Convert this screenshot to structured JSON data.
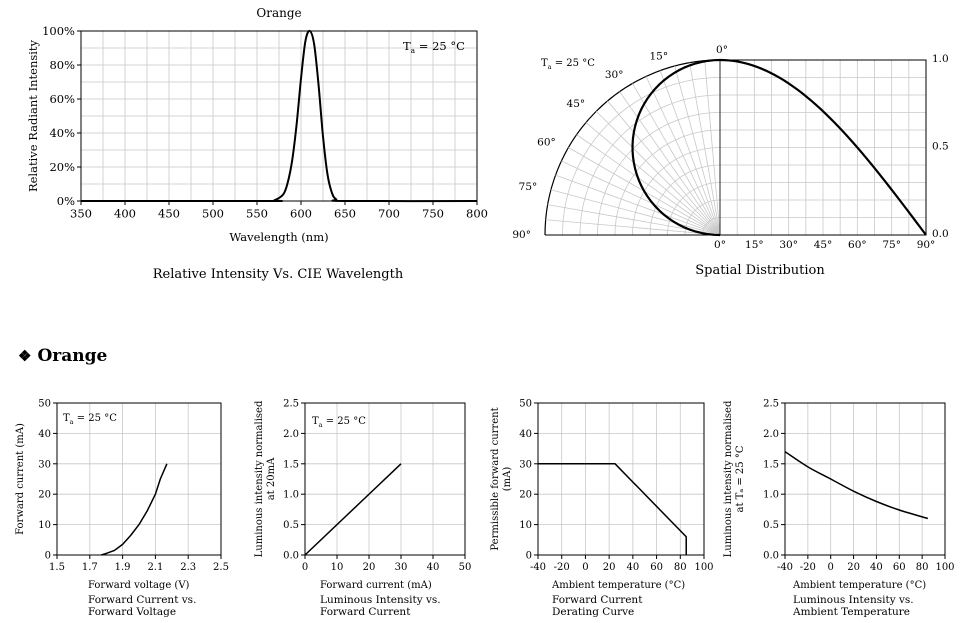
{
  "section_heading": {
    "symbol": "❖",
    "label": "Orange"
  },
  "chart_data": [
    {
      "id": "spectrum",
      "type": "line",
      "title": "Orange",
      "caption": "Relative Intensity Vs. CIE Wavelength",
      "xlabel": "Wavelength (nm)",
      "ylabel": "Relative Radiant Intensity",
      "xlim": [
        350,
        800
      ],
      "ylim": [
        0,
        100
      ],
      "xticks": [
        350,
        400,
        450,
        500,
        550,
        600,
        650,
        700,
        750,
        800
      ],
      "yticks": [
        0,
        20,
        40,
        60,
        80,
        100
      ],
      "ytick_labels": [
        "0%",
        "20%",
        "40%",
        "60%",
        "80%",
        "100%"
      ],
      "grid": true,
      "annotation": {
        "main": "T",
        "sub": "a",
        "rest": " = 25 °C"
      },
      "series": [
        {
          "x": [
            350,
            560,
            570,
            580,
            585,
            590,
            595,
            600,
            605,
            610,
            615,
            620,
            625,
            630,
            635,
            640,
            650,
            800
          ],
          "y": [
            0,
            0,
            0.5,
            4,
            11,
            24,
            45,
            72,
            94,
            100,
            92,
            68,
            38,
            16,
            5,
            1,
            0,
            0
          ]
        }
      ]
    },
    {
      "id": "spatial",
      "type": "polar",
      "caption": "Spatial Distribution",
      "annotation": {
        "main": "T",
        "sub": "a",
        "rest": " = 25 °C"
      },
      "angle_labels": [
        "0°",
        "15°",
        "30°",
        "45°",
        "60°",
        "75°",
        "90°"
      ],
      "bottom_labels": [
        "0°",
        "15°",
        "30°",
        "45°",
        "60°",
        "75°",
        "90°"
      ],
      "right_labels": [
        "1.0",
        "0.5",
        "0.0"
      ],
      "series": [
        {
          "angle": [
            0,
            10,
            20,
            30,
            40,
            50,
            60,
            70,
            80,
            90
          ],
          "value": [
            1.0,
            0.985,
            0.94,
            0.866,
            0.766,
            0.643,
            0.5,
            0.342,
            0.174,
            0.0
          ]
        }
      ]
    },
    {
      "id": "iv",
      "type": "line",
      "caption_lines": [
        "Forward Current vs.",
        "Forward Voltage"
      ],
      "xlabel": "Forward voltage (V)",
      "ylabel": "Forward current (mA)",
      "xlim": [
        1.5,
        2.5
      ],
      "ylim": [
        0,
        50
      ],
      "xticks": [
        1.5,
        1.7,
        1.9,
        2.1,
        2.3,
        2.5
      ],
      "xtick_labels": [
        "1.5",
        "1.7",
        "1.9",
        "2.1",
        "2.3",
        "2.5"
      ],
      "yticks": [
        0,
        10,
        20,
        30,
        40,
        50
      ],
      "ytick_labels": [
        "0",
        "10",
        "20",
        "30",
        "40",
        "50"
      ],
      "grid": true,
      "annotation": {
        "main": "T",
        "sub": "a",
        "rest": " = 25 °C"
      },
      "series": [
        {
          "x": [
            1.77,
            1.8,
            1.85,
            1.9,
            1.95,
            2.0,
            2.05,
            2.1,
            2.13,
            2.17
          ],
          "y": [
            0,
            0.5,
            1.5,
            3.5,
            6.5,
            10,
            14.5,
            20,
            25,
            30
          ]
        }
      ]
    },
    {
      "id": "li",
      "type": "line",
      "caption_lines": [
        "Luminous Intensity vs.",
        "Forward Current"
      ],
      "xlabel": "Forward current (mA)",
      "ylabel_lines": [
        "Luminous intensity normalised",
        "at 20mA"
      ],
      "xlim": [
        0,
        50
      ],
      "ylim": [
        0,
        2.5
      ],
      "xticks": [
        0,
        10,
        20,
        30,
        40,
        50
      ],
      "xtick_labels": [
        "0",
        "10",
        "20",
        "30",
        "40",
        "50"
      ],
      "yticks": [
        0,
        0.5,
        1.0,
        1.5,
        2.0,
        2.5
      ],
      "ytick_labels": [
        "0.0",
        "0.5",
        "1.0",
        "1.5",
        "2.0",
        "2.5"
      ],
      "grid": true,
      "annotation": {
        "main": "T",
        "sub": "a",
        "rest": " = 25 °C"
      },
      "series": [
        {
          "x": [
            0,
            30
          ],
          "y": [
            0,
            1.5
          ]
        }
      ]
    },
    {
      "id": "derating",
      "type": "line",
      "caption_lines": [
        "Forward Current",
        "Derating  Curve"
      ],
      "xlabel": "Ambient temperature (°C)",
      "ylabel_lines": [
        "Permissible forward current",
        "(mA)"
      ],
      "xlim": [
        -40,
        100
      ],
      "ylim": [
        0,
        50
      ],
      "xticks": [
        -40,
        -20,
        0,
        20,
        40,
        60,
        80,
        100
      ],
      "xtick_labels": [
        "-40",
        "-20",
        "0",
        "20",
        "40",
        "60",
        "80",
        "100"
      ],
      "yticks": [
        0,
        10,
        20,
        30,
        40,
        50
      ],
      "ytick_labels": [
        "0",
        "10",
        "20",
        "30",
        "40",
        "50"
      ],
      "grid": true,
      "series": [
        {
          "x": [
            -40,
            25,
            85,
            85
          ],
          "y": [
            30,
            30,
            6,
            0
          ]
        }
      ]
    },
    {
      "id": "lt",
      "type": "line",
      "caption_lines": [
        "Luminous Intensity vs.",
        "Ambient Temperature"
      ],
      "xlabel": "Ambient temperature (°C)",
      "ylabel_lines": [
        "Luminous intensity normalised",
        "at Tₐ = 25 °C"
      ],
      "xlim": [
        -40,
        100
      ],
      "ylim": [
        0,
        2.5
      ],
      "xticks": [
        -40,
        -20,
        0,
        20,
        40,
        60,
        80,
        100
      ],
      "xtick_labels": [
        "-40",
        "-20",
        "0",
        "20",
        "40",
        "60",
        "80",
        "100"
      ],
      "yticks": [
        0,
        0.5,
        1.0,
        1.5,
        2.0,
        2.5
      ],
      "ytick_labels": [
        "0.0",
        "0.5",
        "1.0",
        "1.5",
        "2.0",
        "2.5"
      ],
      "grid": true,
      "series": [
        {
          "x": [
            -40,
            -20,
            0,
            20,
            40,
            60,
            85
          ],
          "y": [
            1.7,
            1.45,
            1.25,
            1.05,
            0.88,
            0.74,
            0.6
          ]
        }
      ]
    }
  ]
}
